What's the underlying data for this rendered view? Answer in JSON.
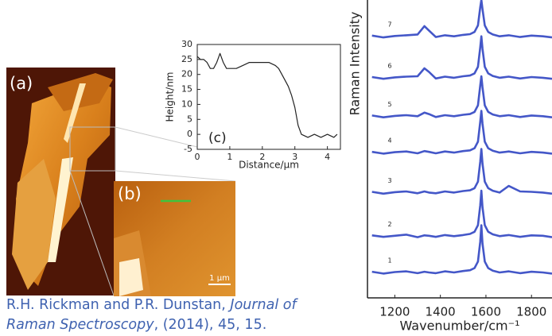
{
  "chart_data": [
    {
      "type": "line",
      "annotation": "(c)",
      "xlabel": "Distance/μm",
      "ylabel": "Height/nm",
      "x": [
        0,
        0.1,
        0.2,
        0.3,
        0.4,
        0.5,
        0.6,
        0.7,
        0.8,
        0.9,
        1.0,
        1.2,
        1.4,
        1.6,
        1.8,
        2.0,
        2.2,
        2.4,
        2.5,
        2.6,
        2.7,
        2.8,
        2.9,
        3.0,
        3.1,
        3.2,
        3.4,
        3.6,
        3.8,
        4.0,
        4.2,
        4.3
      ],
      "values": [
        26,
        25,
        25,
        24,
        22,
        22,
        24,
        27,
        24,
        22,
        22,
        22,
        23,
        24,
        24,
        24,
        24,
        23,
        22,
        20,
        18,
        16,
        13,
        9,
        3,
        0,
        -1,
        0,
        -1,
        0,
        -1,
        0
      ],
      "color": "#222222",
      "xlim": [
        0,
        4.4
      ],
      "xticks": [
        0,
        1,
        2,
        3,
        4
      ],
      "ylim": [
        -5,
        30
      ],
      "yticks": [
        -5,
        0,
        5,
        10,
        15,
        20,
        25,
        30
      ]
    },
    {
      "type": "line",
      "xlabel": "Wavenumber/cm⁻¹",
      "ylabel": "Raman Intensity",
      "x": [
        1100,
        1150,
        1200,
        1250,
        1300,
        1330,
        1350,
        1380,
        1420,
        1460,
        1500,
        1530,
        1550,
        1565,
        1575,
        1580,
        1585,
        1595,
        1610,
        1630,
        1660,
        1700,
        1750,
        1800,
        1850,
        1890
      ],
      "series": [
        {
          "name": "1",
          "color": "#4457c8",
          "values": [
            0.72,
            0.67,
            0.71,
            0.73,
            0.68,
            0.72,
            0.7,
            0.68,
            0.73,
            0.7,
            0.74,
            0.76,
            0.82,
            1.0,
            1.55,
            2.0,
            1.5,
            1.0,
            0.82,
            0.75,
            0.7,
            0.73,
            0.68,
            0.72,
            0.7,
            0.67
          ]
        },
        {
          "name": "2",
          "color": "#4457c8",
          "values": [
            1.72,
            1.68,
            1.71,
            1.74,
            1.67,
            1.72,
            1.71,
            1.68,
            1.73,
            1.7,
            1.73,
            1.76,
            1.82,
            2.0,
            2.55,
            2.95,
            2.5,
            2.0,
            1.82,
            1.75,
            1.7,
            1.73,
            1.68,
            1.72,
            1.71,
            1.67
          ]
        },
        {
          "name": "3",
          "color": "#4457c8",
          "values": [
            2.92,
            2.87,
            2.91,
            2.93,
            2.88,
            2.93,
            2.9,
            2.88,
            2.93,
            2.9,
            2.94,
            2.96,
            3.02,
            3.2,
            3.75,
            4.1,
            3.7,
            3.2,
            3.02,
            2.95,
            2.9,
            3.08,
            2.93,
            2.92,
            2.9,
            2.87
          ]
        },
        {
          "name": "4",
          "color": "#4457c8",
          "values": [
            4.02,
            3.97,
            4.01,
            4.03,
            3.98,
            4.04,
            4.02,
            3.98,
            4.03,
            4.0,
            4.04,
            4.06,
            4.12,
            4.3,
            4.85,
            5.15,
            4.8,
            4.3,
            4.12,
            4.05,
            4.0,
            4.03,
            3.98,
            4.02,
            4.0,
            3.97
          ]
        },
        {
          "name": "5",
          "color": "#4457c8",
          "values": [
            5.02,
            4.97,
            5.01,
            5.03,
            5.0,
            5.1,
            5.06,
            4.98,
            5.03,
            5.0,
            5.04,
            5.06,
            5.12,
            5.3,
            5.85,
            6.1,
            5.8,
            5.3,
            5.12,
            5.05,
            5.0,
            5.03,
            4.98,
            5.02,
            5.0,
            4.97
          ]
        },
        {
          "name": "6",
          "color": "#4457c8",
          "values": [
            6.08,
            6.03,
            6.07,
            6.09,
            6.1,
            6.32,
            6.22,
            6.04,
            6.09,
            6.06,
            6.1,
            6.12,
            6.18,
            6.36,
            6.9,
            7.2,
            6.86,
            6.36,
            6.18,
            6.11,
            6.06,
            6.09,
            6.04,
            6.08,
            6.06,
            6.03
          ]
        },
        {
          "name": "7",
          "color": "#4457c8",
          "values": [
            7.22,
            7.17,
            7.21,
            7.23,
            7.25,
            7.48,
            7.36,
            7.18,
            7.23,
            7.2,
            7.24,
            7.26,
            7.32,
            7.5,
            8.0,
            8.2,
            7.95,
            7.5,
            7.32,
            7.25,
            7.2,
            7.23,
            7.18,
            7.22,
            7.2,
            7.17
          ]
        }
      ],
      "xlim": [
        1080,
        1890
      ],
      "xticks": [
        1200,
        1400,
        1600,
        1800
      ],
      "ylim": [
        0,
        8.2
      ]
    }
  ],
  "figure_labels": [
    "(a)",
    "(b)"
  ],
  "scale_bar": "1 μm",
  "citation": {
    "authors": "R.H. Rickman and P.R. Dunstan, ",
    "journal": "Journal of Raman Spectroscopy",
    "details": ", (2014), 45, 15."
  }
}
